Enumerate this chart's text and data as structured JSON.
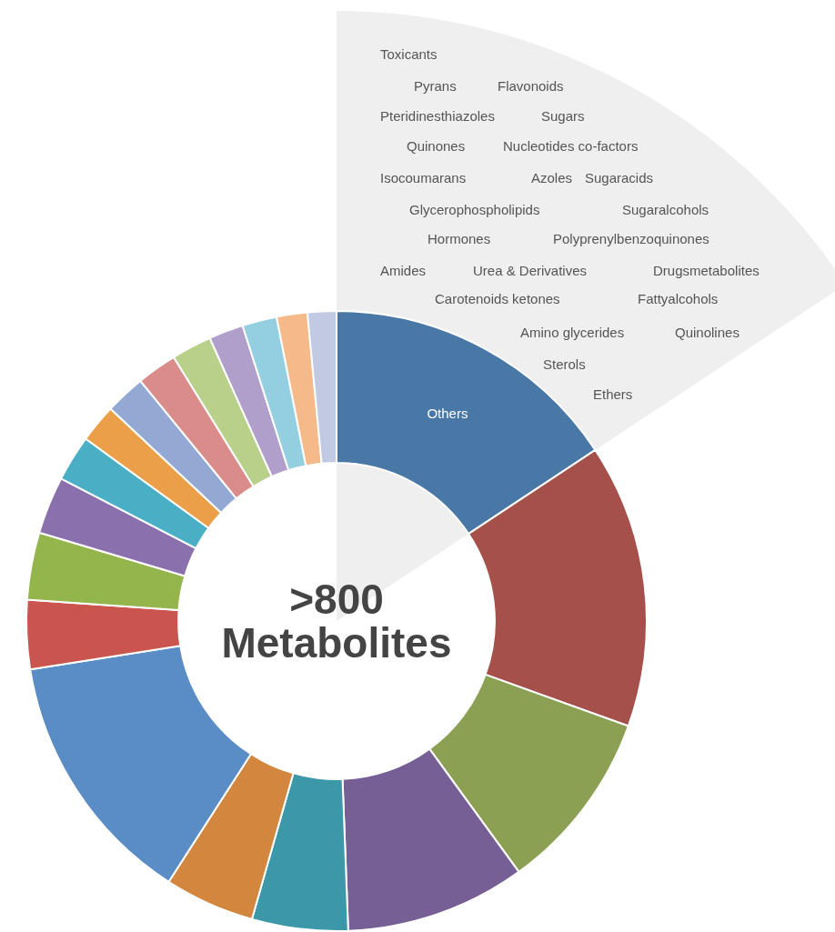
{
  "chart_data": {
    "type": "donut",
    "title": ">800 Metabolites",
    "categories": [
      "Others",
      null,
      null,
      null,
      null,
      null,
      null,
      null,
      null,
      null,
      null,
      null,
      null,
      null,
      null,
      null,
      null,
      null,
      null
    ],
    "values": [
      15.7,
      14.8,
      9.5,
      9.4,
      5.0,
      4.7,
      13.4,
      3.6,
      3.5,
      3.0,
      2.4,
      2.0,
      2.1,
      2.1,
      2.1,
      1.8,
      1.8,
      1.6,
      1.5
    ],
    "colors": [
      "#4a78a6",
      "#a5504a",
      "#8ba052",
      "#765f94",
      "#3c97a8",
      "#d3863e",
      "#5a8cc6",
      "#c9554e",
      "#93b54c",
      "#8a71ad",
      "#4aafc4",
      "#eb9f48",
      "#93a9d4",
      "#d98c8a",
      "#b9d08a",
      "#b09fcb",
      "#93cfe0",
      "#f6b98a",
      "#c1c9e3"
    ],
    "annotations": [
      "Toxicants",
      "Pyrans",
      "Flavonoids",
      "Pteridinesthiazoles",
      "Sugars",
      "Quinones",
      "Nucleotides co-factors",
      "Isocoumarans",
      "Azoles",
      "Sugaracids",
      "Glycerophospholipids",
      "Sugaralcohols",
      "Hormones",
      "Polyprenylbenzoquinones",
      "Amides",
      "Urea & Derivatives",
      "Drugsmetabolites",
      "Carotenoids ketones",
      "Fattyalcohols",
      "Amino glycerides",
      "Quinolines",
      "Sterols",
      "Ethers"
    ],
    "legend": false
  }
}
